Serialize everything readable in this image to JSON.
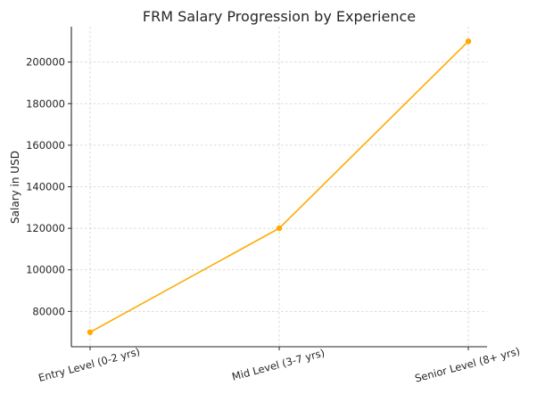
{
  "chart_data": {
    "type": "line",
    "title": "FRM Salary Progression by Experience",
    "xlabel": "",
    "ylabel": "Salary in USD",
    "categories": [
      "Entry Level (0-2 yrs)",
      "Mid Level (3-7 yrs)",
      "Senior Level (8+ yrs)"
    ],
    "series": [
      {
        "values": [
          70000,
          120000,
          210000
        ],
        "color": "#FFAA00",
        "marker": "circle"
      }
    ],
    "ylim": [
      63000,
      217000
    ],
    "yticks": [
      80000,
      100000,
      120000,
      140000,
      160000,
      180000,
      200000
    ],
    "ytick_labels": [
      "80000",
      "100000",
      "120000",
      "140000",
      "160000",
      "180000",
      "200000"
    ],
    "grid": true,
    "legend": "none"
  }
}
